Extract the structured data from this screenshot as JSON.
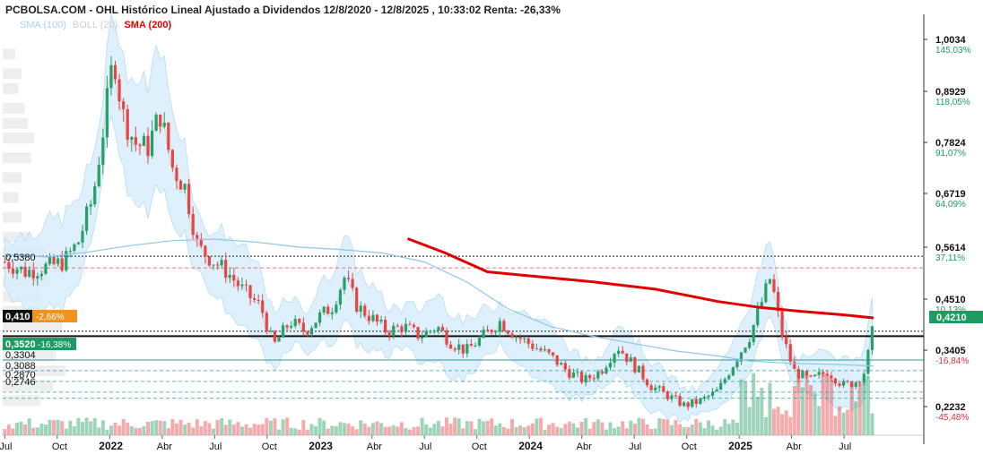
{
  "header": {
    "title": "PCBOLSA.COM - OHL Histórico Lineal Ajustado a Dividendos 12/8/2020 - 12/8/2025 , 10:33:02 Renta: -26,33%"
  },
  "legend": {
    "items": [
      {
        "label": "SMA (100)",
        "color": "#a9d3ee",
        "bold": false
      },
      {
        "label": "BOLL (20)",
        "color": "#cfcfcf",
        "bold": false
      },
      {
        "label": "SMA (200)",
        "color": "#e00000",
        "bold": true
      }
    ]
  },
  "colors": {
    "up": "#27a06a",
    "down": "#e84545",
    "sma100": "#8ec7ea",
    "sma200": "#e00000",
    "band_fill": "#d6ecfa",
    "pct_green": "#1f9a60",
    "pct_red": "#e0303a",
    "badge_orange": "#f0931e",
    "badge_green": "#1f9a60"
  },
  "right_axis": [
    {
      "price": "1,0034",
      "pct": "145,03%",
      "pct_sign": "pos"
    },
    {
      "price": "0,8929",
      "pct": "118,05%",
      "pct_sign": "pos"
    },
    {
      "price": "0,7824",
      "pct": "91,07%",
      "pct_sign": "pos"
    },
    {
      "price": "0,6719",
      "pct": "64,09%",
      "pct_sign": "pos"
    },
    {
      "price": "0,5614",
      "pct": "37,11%",
      "pct_sign": "pos"
    },
    {
      "price": "0,4510",
      "pct": "10,13%",
      "pct_sign": "pos"
    },
    {
      "price": "0,3405",
      "pct": "-16,84%",
      "pct_sign": "neg"
    },
    {
      "price": "0,2232",
      "pct": "-45,48%",
      "pct_sign": "neg"
    }
  ],
  "current_price_badge": "0,4210",
  "left_labels": [
    {
      "text": "0,5380",
      "price": 0.538,
      "badge": false
    },
    {
      "text": "0,410",
      "pct": "-2,66%",
      "price": 0.41,
      "badge": "orange"
    },
    {
      "text": "0,3520",
      "pct": "-16,38%",
      "price": 0.352,
      "badge": "green"
    },
    {
      "text": "0,3304",
      "price": 0.3304,
      "badge": false
    },
    {
      "text": "0,3088",
      "price": 0.3088,
      "badge": false
    },
    {
      "text": "0,2870",
      "price": 0.287,
      "badge": false
    },
    {
      "text": "0,2746",
      "price": 0.2746,
      "badge": false
    }
  ],
  "x_axis": {
    "ticks": [
      {
        "label": "Jul",
        "bold": false,
        "year": 2021.5
      },
      {
        "label": "Oct",
        "bold": false,
        "year": 2021.75
      },
      {
        "label": "2022",
        "bold": true,
        "year": 2022.0
      },
      {
        "label": "Abr",
        "bold": false,
        "year": 2022.25
      },
      {
        "label": "Jul",
        "bold": false,
        "year": 2022.5
      },
      {
        "label": "Oct",
        "bold": false,
        "year": 2022.75
      },
      {
        "label": "2023",
        "bold": true,
        "year": 2023.0
      },
      {
        "label": "Abr",
        "bold": false,
        "year": 2023.25
      },
      {
        "label": "Jul",
        "bold": false,
        "year": 2023.5
      },
      {
        "label": "Oct",
        "bold": false,
        "year": 2023.75
      },
      {
        "label": "2024",
        "bold": true,
        "year": 2024.0
      },
      {
        "label": "Abr",
        "bold": false,
        "year": 2024.25
      },
      {
        "label": "Jul",
        "bold": false,
        "year": 2024.5
      },
      {
        "label": "Oct",
        "bold": false,
        "year": 2024.75
      },
      {
        "label": "2025",
        "bold": true,
        "year": 2025.0
      },
      {
        "label": "Abr",
        "bold": false,
        "year": 2025.25
      },
      {
        "label": "Jul",
        "bold": false,
        "year": 2025.5
      }
    ]
  },
  "chart_data": {
    "type": "candlestick",
    "x_range": [
      2021.49,
      2025.88
    ],
    "y_range": [
      0.2,
      1.05
    ],
    "reference_lines": {
      "solid_black": 0.4,
      "dashed_black": [
        0.41,
        0.5614
      ],
      "dashed_red": 0.538,
      "teal_solid": 0.352,
      "teal_dashed": [
        0.3304,
        0.3088,
        0.287,
        0.2746
      ]
    },
    "price_path": [
      [
        2021.5,
        0.55
      ],
      [
        2021.6,
        0.53
      ],
      [
        2021.7,
        0.54
      ],
      [
        2021.78,
        0.55
      ],
      [
        2021.85,
        0.59
      ],
      [
        2021.92,
        0.68
      ],
      [
        2021.97,
        0.82
      ],
      [
        2022.02,
        0.97
      ],
      [
        2022.06,
        0.85
      ],
      [
        2022.12,
        0.79
      ],
      [
        2022.18,
        0.78
      ],
      [
        2022.24,
        0.85
      ],
      [
        2022.3,
        0.74
      ],
      [
        2022.36,
        0.7
      ],
      [
        2022.42,
        0.58
      ],
      [
        2022.5,
        0.55
      ],
      [
        2022.56,
        0.53
      ],
      [
        2022.64,
        0.49
      ],
      [
        2022.72,
        0.46
      ],
      [
        2022.78,
        0.38
      ],
      [
        2022.86,
        0.43
      ],
      [
        2022.93,
        0.41
      ],
      [
        2023.0,
        0.44
      ],
      [
        2023.06,
        0.46
      ],
      [
        2023.12,
        0.52
      ],
      [
        2023.18,
        0.46
      ],
      [
        2023.24,
        0.44
      ],
      [
        2023.32,
        0.41
      ],
      [
        2023.4,
        0.42
      ],
      [
        2023.48,
        0.4
      ],
      [
        2023.56,
        0.42
      ],
      [
        2023.62,
        0.39
      ],
      [
        2023.7,
        0.37
      ],
      [
        2023.78,
        0.4
      ],
      [
        2023.86,
        0.43
      ],
      [
        2023.94,
        0.4
      ],
      [
        2024.02,
        0.38
      ],
      [
        2024.1,
        0.36
      ],
      [
        2024.18,
        0.33
      ],
      [
        2024.26,
        0.31
      ],
      [
        2024.34,
        0.33
      ],
      [
        2024.42,
        0.38
      ],
      [
        2024.5,
        0.34
      ],
      [
        2024.58,
        0.3
      ],
      [
        2024.66,
        0.28
      ],
      [
        2024.74,
        0.26
      ],
      [
        2024.82,
        0.27
      ],
      [
        2024.9,
        0.29
      ],
      [
        2024.98,
        0.35
      ],
      [
        2025.05,
        0.4
      ],
      [
        2025.1,
        0.46
      ],
      [
        2025.15,
        0.52
      ],
      [
        2025.2,
        0.41
      ],
      [
        2025.26,
        0.33
      ],
      [
        2025.34,
        0.31
      ],
      [
        2025.42,
        0.33
      ],
      [
        2025.5,
        0.3
      ],
      [
        2025.56,
        0.31
      ],
      [
        2025.6,
        0.33
      ],
      [
        2025.64,
        0.42
      ]
    ],
    "sma100": [
      [
        2021.5,
        0.565
      ],
      [
        2021.7,
        0.56
      ],
      [
        2021.9,
        0.57
      ],
      [
        2022.1,
        0.583
      ],
      [
        2022.3,
        0.593
      ],
      [
        2022.5,
        0.596
      ],
      [
        2022.7,
        0.59
      ],
      [
        2022.9,
        0.58
      ],
      [
        2023.1,
        0.575
      ],
      [
        2023.3,
        0.568
      ],
      [
        2023.5,
        0.55
      ],
      [
        2023.7,
        0.51
      ],
      [
        2023.9,
        0.455
      ],
      [
        2024.1,
        0.42
      ],
      [
        2024.3,
        0.4
      ],
      [
        2024.5,
        0.385
      ],
      [
        2024.7,
        0.37
      ],
      [
        2024.9,
        0.36
      ],
      [
        2025.05,
        0.35
      ],
      [
        2025.25,
        0.345
      ],
      [
        2025.45,
        0.343
      ],
      [
        2025.64,
        0.34
      ]
    ],
    "sma200": [
      [
        2023.42,
        0.597
      ],
      [
        2023.6,
        0.568
      ],
      [
        2023.8,
        0.53
      ],
      [
        2024.0,
        0.522
      ],
      [
        2024.3,
        0.51
      ],
      [
        2024.6,
        0.495
      ],
      [
        2024.9,
        0.47
      ],
      [
        2025.1,
        0.458
      ],
      [
        2025.3,
        0.45
      ],
      [
        2025.5,
        0.443
      ],
      [
        2025.64,
        0.437
      ]
    ],
    "bollinger_width": 0.08,
    "volume_profile": [
      {
        "price": 0.97,
        "weight": 0.2
      },
      {
        "price": 0.93,
        "weight": 0.3
      },
      {
        "price": 0.9,
        "weight": 0.25
      },
      {
        "price": 0.86,
        "weight": 0.35
      },
      {
        "price": 0.83,
        "weight": 0.4
      },
      {
        "price": 0.8,
        "weight": 0.5
      },
      {
        "price": 0.76,
        "weight": 0.45
      },
      {
        "price": 0.72,
        "weight": 0.3
      },
      {
        "price": 0.68,
        "weight": 0.25
      },
      {
        "price": 0.64,
        "weight": 0.3
      },
      {
        "price": 0.6,
        "weight": 0.45
      },
      {
        "price": 0.57,
        "weight": 0.7
      },
      {
        "price": 0.54,
        "weight": 0.9
      },
      {
        "price": 0.51,
        "weight": 0.75
      },
      {
        "price": 0.48,
        "weight": 0.6
      },
      {
        "price": 0.45,
        "weight": 0.7
      },
      {
        "price": 0.42,
        "weight": 0.95
      },
      {
        "price": 0.39,
        "weight": 0.9
      },
      {
        "price": 0.36,
        "weight": 0.85
      },
      {
        "price": 0.33,
        "weight": 1.0
      },
      {
        "price": 0.3,
        "weight": 0.8
      },
      {
        "price": 0.27,
        "weight": 0.6
      }
    ]
  }
}
